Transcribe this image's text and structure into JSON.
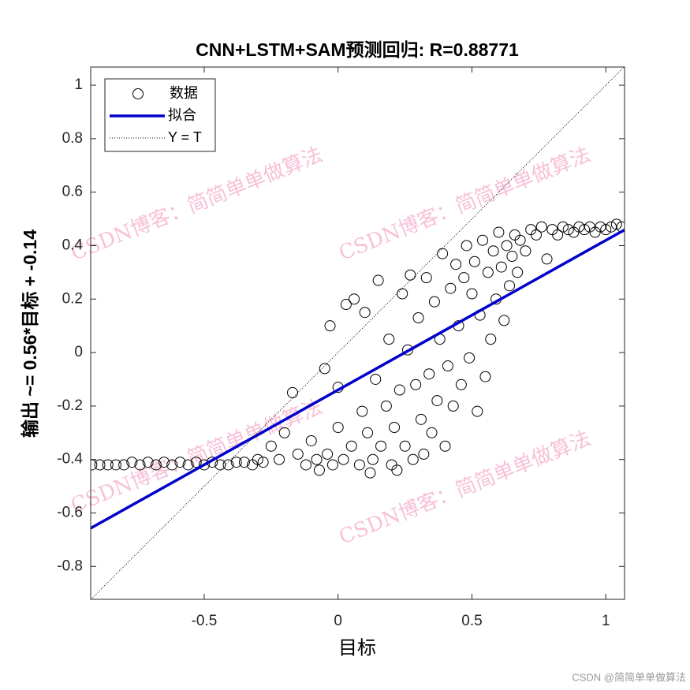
{
  "chart_data": {
    "type": "scatter",
    "title": "CNN+LSTM+SAM预测回归: R=0.88771",
    "x_label": "目标",
    "y_label": "输出 ~= 0.56*目标 + -0.14",
    "xlim": [
      -0.924,
      1.07
    ],
    "ylim": [
      -0.923,
      1.068
    ],
    "xticks": [
      -0.5,
      0,
      0.5,
      1
    ],
    "yticks": [
      -0.8,
      -0.6,
      -0.4,
      -0.2,
      0,
      0.2,
      0.4,
      0.6,
      0.8,
      1
    ],
    "grid": false,
    "legend": "upper left",
    "series": [
      {
        "name": "数据",
        "color": "#000000",
        "style": "circle",
        "x": [
          -0.92,
          -0.89,
          -0.86,
          -0.83,
          -0.8,
          -0.77,
          -0.74,
          -0.71,
          -0.68,
          -0.65,
          -0.62,
          -0.59,
          -0.56,
          -0.53,
          -0.5,
          -0.47,
          -0.44,
          -0.41,
          -0.38,
          -0.35,
          -0.32,
          -0.3,
          -0.28,
          -0.25,
          -0.22,
          -0.2,
          -0.17,
          -0.15,
          -0.12,
          -0.1,
          -0.08,
          -0.07,
          -0.05,
          -0.04,
          -0.03,
          -0.02,
          0.0,
          0.0,
          0.02,
          0.03,
          0.05,
          0.06,
          0.08,
          0.09,
          0.1,
          0.11,
          0.12,
          0.13,
          0.14,
          0.15,
          0.16,
          0.18,
          0.19,
          0.2,
          0.21,
          0.22,
          0.23,
          0.24,
          0.25,
          0.26,
          0.27,
          0.28,
          0.29,
          0.3,
          0.31,
          0.32,
          0.33,
          0.34,
          0.35,
          0.36,
          0.37,
          0.38,
          0.39,
          0.4,
          0.41,
          0.42,
          0.43,
          0.44,
          0.45,
          0.46,
          0.47,
          0.48,
          0.49,
          0.5,
          0.51,
          0.52,
          0.53,
          0.54,
          0.55,
          0.56,
          0.57,
          0.58,
          0.59,
          0.6,
          0.61,
          0.62,
          0.63,
          0.64,
          0.65,
          0.66,
          0.67,
          0.68,
          0.7,
          0.72,
          0.74,
          0.76,
          0.78,
          0.8,
          0.82,
          0.84,
          0.86,
          0.88,
          0.9,
          0.92,
          0.94,
          0.96,
          0.98,
          1.0,
          1.02,
          1.04,
          1.06
        ],
        "values": [
          -0.42,
          -0.42,
          -0.42,
          -0.42,
          -0.42,
          -0.41,
          -0.42,
          -0.41,
          -0.42,
          -0.41,
          -0.42,
          -0.41,
          -0.42,
          -0.41,
          -0.42,
          -0.41,
          -0.42,
          -0.42,
          -0.41,
          -0.41,
          -0.42,
          -0.4,
          -0.41,
          -0.35,
          -0.4,
          -0.3,
          -0.15,
          -0.38,
          -0.42,
          -0.33,
          -0.4,
          -0.44,
          -0.06,
          -0.38,
          0.1,
          -0.42,
          -0.28,
          -0.13,
          -0.4,
          0.18,
          -0.35,
          0.2,
          -0.42,
          -0.22,
          0.15,
          -0.3,
          -0.45,
          -0.4,
          -0.1,
          0.27,
          -0.35,
          -0.2,
          0.05,
          -0.42,
          -0.28,
          -0.44,
          -0.14,
          0.22,
          -0.35,
          0.01,
          0.29,
          -0.4,
          -0.12,
          0.13,
          -0.25,
          -0.38,
          0.28,
          -0.08,
          -0.3,
          0.19,
          -0.18,
          0.05,
          0.37,
          -0.35,
          -0.05,
          0.24,
          -0.2,
          0.33,
          0.1,
          -0.12,
          0.28,
          0.4,
          -0.02,
          0.22,
          0.34,
          -0.22,
          0.14,
          0.42,
          -0.09,
          0.3,
          0.05,
          0.38,
          0.2,
          0.45,
          0.32,
          0.12,
          0.4,
          0.25,
          0.36,
          0.44,
          0.3,
          0.42,
          0.38,
          0.46,
          0.44,
          0.47,
          0.35,
          0.46,
          0.44,
          0.47,
          0.46,
          0.45,
          0.47,
          0.46,
          0.47,
          0.45,
          0.47,
          0.46,
          0.47,
          0.48,
          0.47
        ]
      },
      {
        "name": "拟合",
        "color": "#0000cc",
        "style": "line",
        "x": [
          -0.924,
          1.07
        ],
        "values": [
          -0.657,
          0.459
        ]
      },
      {
        "name": "Y = T",
        "color": "#000000",
        "style": "dotted",
        "x": [
          -0.923,
          1.068
        ],
        "values": [
          -0.923,
          1.068
        ]
      }
    ]
  },
  "watermark": "CSDN博客：简简单单做算法",
  "footer": "CSDN @简简单单做算法"
}
